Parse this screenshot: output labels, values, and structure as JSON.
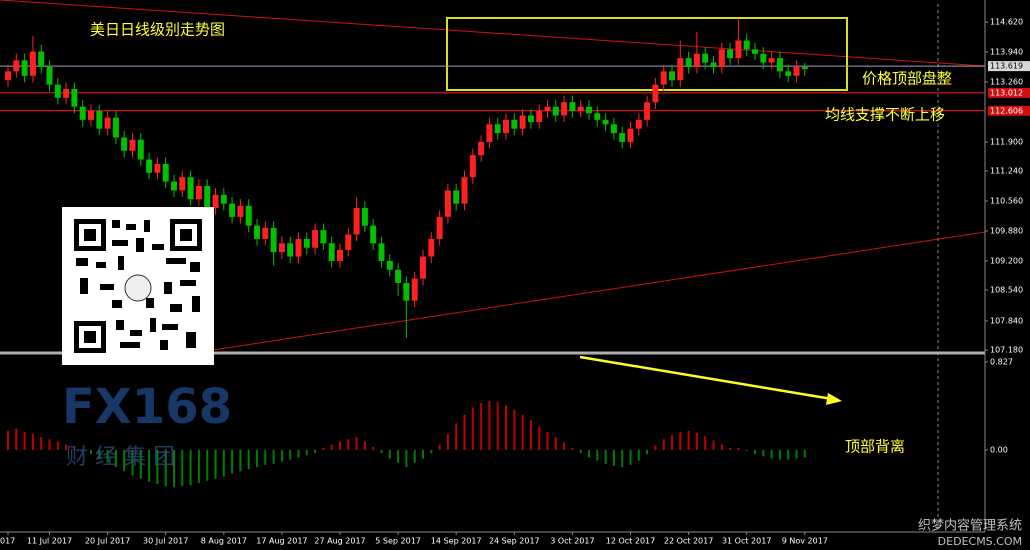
{
  "chart_data": [
    {
      "type": "candlestick",
      "title": "美日日线级别走势图",
      "annotations": [
        "价格顶部盘整",
        "均线支撑不断上移"
      ],
      "up_color": "#ff2020",
      "down_color": "#00c000",
      "ylim": [
        107.135,
        115.028
      ],
      "yticks": [
        {
          "value": 114.62,
          "label": "114.620"
        },
        {
          "value": 113.94,
          "label": "113.940"
        },
        {
          "value": 113.26,
          "label": "113.260"
        },
        {
          "value": 111.9,
          "label": "111.900"
        },
        {
          "value": 111.24,
          "label": "111.240"
        },
        {
          "value": 110.56,
          "label": "110.560"
        },
        {
          "value": 109.88,
          "label": "109.880"
        },
        {
          "value": 109.2,
          "label": "109.200"
        },
        {
          "value": 108.54,
          "label": "108.540"
        },
        {
          "value": 107.84,
          "label": "107.840"
        },
        {
          "value": 107.18,
          "label": "107.180"
        }
      ],
      "levels": [
        113.619,
        113.012,
        112.606
      ],
      "level_colors": [
        "#a0a0c0",
        "#ff2020",
        "#ff2020"
      ],
      "level_label_colors": [
        "#101010",
        "#c00000",
        "#c00000"
      ],
      "xticks": [
        {
          "value": 0,
          "label": "017"
        },
        {
          "value": 5,
          "label": "11 Jul 2017"
        },
        {
          "value": 12,
          "label": "20 Jul 2017"
        },
        {
          "value": 19,
          "label": "30 Jul 2017"
        },
        {
          "value": 26,
          "label": "8 Aug 2017"
        },
        {
          "value": 33,
          "label": "17 Aug 2017"
        },
        {
          "value": 40,
          "label": "27 Aug 2017"
        },
        {
          "value": 47,
          "label": "5 Sep 2017"
        },
        {
          "value": 54,
          "label": "14 Sep 2017"
        },
        {
          "value": 61,
          "label": "24 Sep 2017"
        },
        {
          "value": 68,
          "label": "3 Oct 2017"
        },
        {
          "value": 75,
          "label": "12 Oct 2017"
        },
        {
          "value": 82,
          "label": "22 Oct 2017"
        },
        {
          "value": 89,
          "label": "31 Oct 2017"
        },
        {
          "value": 96,
          "label": "9 Nov 2017"
        }
      ],
      "ohlc": [
        [
          113.3,
          113.65,
          113.15,
          113.5
        ],
        [
          113.5,
          113.9,
          113.35,
          113.75
        ],
        [
          113.75,
          113.9,
          113.25,
          113.4
        ],
        [
          113.4,
          114.3,
          113.25,
          113.95
        ],
        [
          113.95,
          114.1,
          113.45,
          113.6
        ],
        [
          113.6,
          113.75,
          113.05,
          113.2
        ],
        [
          113.2,
          113.35,
          112.75,
          112.9
        ],
        [
          112.9,
          113.25,
          112.75,
          113.1
        ],
        [
          113.1,
          113.25,
          112.55,
          112.7
        ],
        [
          112.7,
          112.85,
          112.25,
          112.4
        ],
        [
          112.4,
          112.75,
          112.25,
          112.6
        ],
        [
          112.6,
          112.75,
          112.05,
          112.2
        ],
        [
          112.2,
          112.6,
          112.05,
          112.45
        ],
        [
          112.45,
          112.6,
          111.85,
          112.0
        ],
        [
          112.0,
          112.15,
          111.55,
          111.7
        ],
        [
          111.7,
          112.1,
          111.55,
          111.95
        ],
        [
          111.95,
          112.1,
          111.35,
          111.5
        ],
        [
          111.5,
          111.65,
          111.05,
          111.2
        ],
        [
          111.2,
          111.55,
          111.05,
          111.4
        ],
        [
          111.4,
          111.55,
          110.85,
          111.0
        ],
        [
          111.0,
          111.15,
          110.65,
          110.8
        ],
        [
          110.8,
          111.25,
          110.65,
          111.1
        ],
        [
          111.1,
          111.25,
          110.45,
          110.6
        ],
        [
          110.6,
          111.05,
          110.45,
          110.9
        ],
        [
          110.9,
          111.05,
          110.25,
          110.4
        ],
        [
          110.4,
          110.85,
          110.25,
          110.7
        ],
        [
          110.7,
          110.85,
          110.35,
          110.5
        ],
        [
          110.5,
          110.65,
          110.05,
          110.2
        ],
        [
          110.2,
          110.6,
          110.05,
          110.45
        ],
        [
          110.45,
          110.6,
          109.85,
          110.0
        ],
        [
          110.0,
          110.15,
          109.55,
          109.7
        ],
        [
          109.7,
          110.1,
          109.55,
          109.95
        ],
        [
          109.95,
          110.1,
          109.1,
          109.4
        ],
        [
          109.4,
          109.75,
          109.25,
          109.6
        ],
        [
          109.6,
          109.75,
          109.15,
          109.3
        ],
        [
          109.3,
          109.85,
          109.15,
          109.7
        ],
        [
          109.7,
          109.85,
          109.35,
          109.5
        ],
        [
          109.5,
          110.05,
          109.35,
          109.9
        ],
        [
          109.9,
          110.05,
          109.45,
          109.6
        ],
        [
          109.6,
          109.75,
          109.05,
          109.2
        ],
        [
          109.2,
          109.6,
          109.05,
          109.45
        ],
        [
          109.45,
          109.95,
          109.3,
          109.8
        ],
        [
          109.8,
          110.65,
          109.65,
          110.4
        ],
        [
          110.4,
          110.55,
          109.85,
          110.0
        ],
        [
          110.0,
          110.15,
          109.45,
          109.6
        ],
        [
          109.6,
          109.75,
          109.05,
          109.2
        ],
        [
          109.2,
          109.35,
          108.85,
          109.0
        ],
        [
          109.0,
          109.15,
          108.4,
          108.7
        ],
        [
          108.7,
          108.85,
          107.45,
          108.3
        ],
        [
          108.3,
          108.95,
          108.15,
          108.8
        ],
        [
          108.8,
          109.45,
          108.65,
          109.3
        ],
        [
          109.3,
          109.85,
          109.15,
          109.7
        ],
        [
          109.7,
          110.35,
          109.55,
          110.2
        ],
        [
          110.2,
          110.95,
          110.05,
          110.8
        ],
        [
          110.8,
          110.95,
          110.35,
          110.5
        ],
        [
          110.5,
          111.25,
          110.35,
          111.1
        ],
        [
          111.1,
          111.75,
          110.95,
          111.6
        ],
        [
          111.6,
          112.05,
          111.45,
          111.9
        ],
        [
          111.9,
          112.45,
          111.75,
          112.3
        ],
        [
          112.3,
          112.45,
          111.95,
          112.1
        ],
        [
          112.1,
          112.55,
          111.95,
          112.4
        ],
        [
          112.4,
          112.55,
          112.05,
          112.2
        ],
        [
          112.2,
          112.65,
          112.05,
          112.5
        ],
        [
          112.5,
          112.65,
          112.2,
          112.35
        ],
        [
          112.35,
          112.75,
          112.2,
          112.6
        ],
        [
          112.6,
          112.85,
          112.45,
          112.7
        ],
        [
          112.7,
          112.85,
          112.35,
          112.5
        ],
        [
          112.5,
          112.95,
          112.35,
          112.8
        ],
        [
          112.8,
          112.95,
          112.45,
          112.6
        ],
        [
          112.6,
          112.85,
          112.45,
          112.7
        ],
        [
          112.7,
          112.85,
          112.4,
          112.55
        ],
        [
          112.55,
          112.7,
          112.25,
          112.4
        ],
        [
          112.4,
          112.55,
          112.15,
          112.3
        ],
        [
          112.3,
          112.45,
          111.95,
          112.1
        ],
        [
          112.1,
          112.25,
          111.75,
          111.9
        ],
        [
          111.9,
          112.35,
          111.75,
          112.2
        ],
        [
          112.2,
          112.55,
          112.05,
          112.4
        ],
        [
          112.4,
          112.95,
          112.25,
          112.8
        ],
        [
          112.8,
          113.35,
          112.65,
          113.2
        ],
        [
          113.2,
          113.65,
          113.05,
          113.5
        ],
        [
          113.5,
          113.65,
          113.15,
          113.3
        ],
        [
          113.3,
          114.2,
          113.15,
          113.8
        ],
        [
          113.8,
          113.95,
          113.45,
          113.6
        ],
        [
          113.6,
          114.4,
          113.45,
          113.9
        ],
        [
          113.9,
          114.05,
          113.55,
          113.7
        ],
        [
          113.7,
          113.85,
          113.45,
          113.6
        ],
        [
          113.6,
          114.15,
          113.45,
          114.0
        ],
        [
          114.0,
          114.15,
          113.65,
          113.8
        ],
        [
          113.8,
          114.7,
          113.65,
          114.2
        ],
        [
          114.2,
          114.35,
          113.85,
          114.0
        ],
        [
          114.0,
          114.15,
          113.75,
          113.9
        ],
        [
          113.9,
          114.05,
          113.55,
          113.7
        ],
        [
          113.7,
          113.95,
          113.55,
          113.8
        ],
        [
          113.8,
          113.95,
          113.35,
          113.5
        ],
        [
          113.5,
          113.65,
          113.25,
          113.4
        ],
        [
          113.4,
          113.75,
          113.25,
          113.6
        ],
        [
          113.6,
          113.7,
          113.4,
          113.55
        ]
      ]
    },
    {
      "type": "bar",
      "annotations": [
        "顶部背离"
      ],
      "up_color": "#c00000",
      "down_color": "#008000",
      "ylim": [
        -0.771,
        0.883
      ],
      "yticks": [
        0.827,
        {
          "value": 0,
          "label": "0.00"
        }
      ],
      "values": [
        0.18,
        0.2,
        0.17,
        0.15,
        0.12,
        0.1,
        0.08,
        0.05,
        0.03,
        0.0,
        -0.04,
        -0.08,
        -0.12,
        -0.16,
        -0.2,
        -0.24,
        -0.27,
        -0.3,
        -0.32,
        -0.34,
        -0.35,
        -0.34,
        -0.33,
        -0.31,
        -0.29,
        -0.27,
        -0.25,
        -0.22,
        -0.2,
        -0.18,
        -0.16,
        -0.14,
        -0.13,
        -0.11,
        -0.09,
        -0.07,
        -0.05,
        -0.03,
        0.02,
        0.05,
        0.08,
        0.1,
        0.12,
        0.08,
        0.03,
        -0.03,
        -0.08,
        -0.12,
        -0.16,
        -0.12,
        -0.08,
        -0.03,
        0.05,
        0.15,
        0.25,
        0.33,
        0.4,
        0.44,
        0.46,
        0.45,
        0.42,
        0.38,
        0.33,
        0.28,
        0.22,
        0.17,
        0.12,
        0.07,
        0.02,
        -0.03,
        -0.07,
        -0.1,
        -0.13,
        -0.15,
        -0.16,
        -0.14,
        -0.1,
        -0.04,
        0.04,
        0.1,
        0.14,
        0.17,
        0.18,
        0.16,
        0.13,
        0.09,
        0.05,
        0.02,
        0.02,
        -0.01,
        -0.04,
        -0.06,
        -0.08,
        -0.09,
        -0.09,
        -0.08,
        -0.07
      ]
    }
  ],
  "watermark": {
    "brand": "FX168",
    "sub": "财 经 集 团"
  },
  "footer_watermark": {
    "line1": "织梦内容管理系统",
    "line2": "DEDECMS.COM"
  }
}
